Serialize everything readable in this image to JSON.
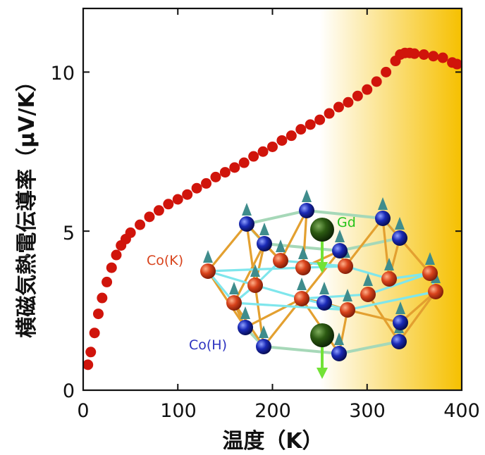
{
  "chart_data": {
    "type": "scatter",
    "title": "",
    "xlabel": "温度（K）",
    "ylabel": "横磁気熱電伝導率（μV/K）",
    "xlim": [
      0,
      400
    ],
    "ylim": [
      0,
      12
    ],
    "x_ticks": [
      "0",
      "100",
      "200",
      "300",
      "400"
    ],
    "y_ticks": [
      "0",
      "5",
      "10"
    ],
    "grid": false,
    "series": [
      {
        "color": "#d0140b",
        "x": [
          5,
          8,
          12,
          16,
          20,
          25,
          30,
          35,
          40,
          45,
          50,
          60,
          70,
          80,
          90,
          100,
          110,
          120,
          130,
          140,
          150,
          160,
          170,
          180,
          190,
          200,
          210,
          220,
          230,
          240,
          250,
          260,
          270,
          280,
          290,
          300,
          310,
          320,
          330,
          335,
          340,
          345,
          350,
          360,
          370,
          380,
          390,
          395
        ],
        "y": [
          0.8,
          1.2,
          1.8,
          2.4,
          2.9,
          3.4,
          3.85,
          4.25,
          4.55,
          4.75,
          4.95,
          5.2,
          5.45,
          5.65,
          5.85,
          6.0,
          6.15,
          6.35,
          6.5,
          6.7,
          6.85,
          7.0,
          7.15,
          7.35,
          7.5,
          7.65,
          7.85,
          8.0,
          8.2,
          8.35,
          8.5,
          8.7,
          8.9,
          9.05,
          9.25,
          9.45,
          9.7,
          10.0,
          10.35,
          10.55,
          10.6,
          10.6,
          10.58,
          10.55,
          10.5,
          10.45,
          10.3,
          10.25
        ]
      }
    ],
    "background_gradient": {
      "from_x": 250,
      "to_x": 400,
      "color_start": "#ffffff",
      "color_end": "#f6c000"
    },
    "inset": {
      "labels": {
        "gd": "Gd",
        "co_k": "Co(K)",
        "co_h": "Co(H)"
      },
      "colors": {
        "gd": "#2c5a12",
        "gd_label": "#27c31a",
        "co_k": "#d8431c",
        "co_k_label": "#d8431c",
        "co_h": "#1a2ab6",
        "co_h_label": "#2c32c0",
        "bond_orange": "#e3a030",
        "bond_cyan": "#7fe6ec",
        "bond_green": "#a6d8b8",
        "spin_arrow": "#3f8c8c",
        "gd_arrow": "#72e236"
      }
    }
  }
}
